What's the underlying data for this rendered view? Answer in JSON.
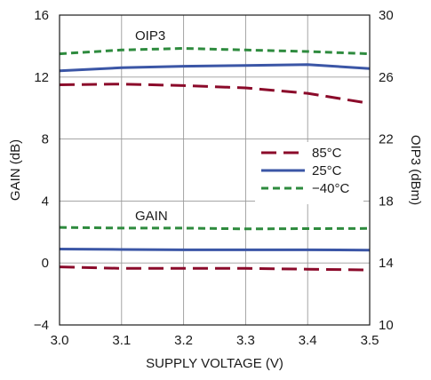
{
  "chart_data": {
    "type": "line",
    "xlabel": "SUPPLY VOLTAGE (V)",
    "ylabel_left": "GAIN (dB)",
    "ylabel_right": "OIP3 (dBm)",
    "xlim": [
      3.0,
      3.5
    ],
    "ylim_left": [
      -4,
      16
    ],
    "ylim_right": [
      10,
      30
    ],
    "grid": true,
    "legend_placement": "center-right",
    "x_ticks": [
      "3.0",
      "3.1",
      "3.2",
      "3.3",
      "3.4",
      "3.5"
    ],
    "y_ticks_left": [
      "16",
      "12",
      "8",
      "4",
      "0",
      "−4"
    ],
    "y_ticks_right": [
      "30",
      "26",
      "22",
      "18",
      "14",
      "10"
    ],
    "annotations": {
      "oip3": "OIP3",
      "gain": "GAIN"
    },
    "x": [
      3.0,
      3.1,
      3.2,
      3.3,
      3.4,
      3.5
    ],
    "series": [
      {
        "name": "85°C",
        "group": "OIP3",
        "axis": "right",
        "color": "#8b0a2a",
        "style": "long-dash",
        "values": [
          25.5,
          25.55,
          25.45,
          25.3,
          24.95,
          24.3
        ]
      },
      {
        "name": "25°C",
        "group": "OIP3",
        "axis": "right",
        "color": "#3b56a6",
        "style": "solid",
        "values": [
          26.4,
          26.6,
          26.7,
          26.75,
          26.8,
          26.55
        ]
      },
      {
        "name": "−40°C",
        "group": "OIP3",
        "axis": "right",
        "color": "#2e8b3e",
        "style": "short-dash",
        "values": [
          27.5,
          27.75,
          27.85,
          27.75,
          27.65,
          27.5
        ]
      },
      {
        "name": "85°C",
        "group": "GAIN",
        "axis": "left",
        "color": "#8b0a2a",
        "style": "long-dash",
        "values": [
          -0.25,
          -0.35,
          -0.35,
          -0.35,
          -0.4,
          -0.45
        ]
      },
      {
        "name": "25°C",
        "group": "GAIN",
        "axis": "left",
        "color": "#3b56a6",
        "style": "solid",
        "values": [
          0.9,
          0.87,
          0.85,
          0.85,
          0.85,
          0.83
        ]
      },
      {
        "name": "−40°C",
        "group": "GAIN",
        "axis": "left",
        "color": "#2e8b3e",
        "style": "short-dash",
        "values": [
          2.3,
          2.25,
          2.25,
          2.2,
          2.22,
          2.23
        ]
      }
    ],
    "legend": [
      {
        "label": "85°C",
        "color": "#8b0a2a",
        "style": "long-dash"
      },
      {
        "label": "25°C",
        "color": "#3b56a6",
        "style": "solid"
      },
      {
        "label": "−40°C",
        "color": "#2e8b3e",
        "style": "short-dash"
      }
    ]
  }
}
